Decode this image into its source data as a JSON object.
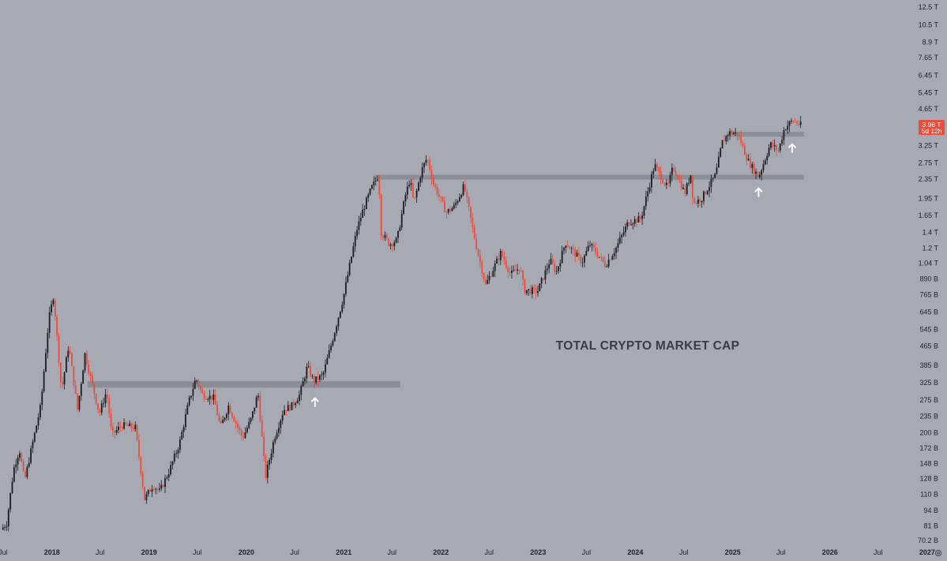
{
  "chart_data": {
    "type": "candlestick",
    "title": "TOTAL CRYPTO MARKET CAP",
    "y_scale": "log",
    "y_range": [
      70200000000.0,
      12500000000000.0
    ],
    "x_range": [
      "2017-06-20",
      "2026-11-15"
    ],
    "y_ticks": [
      {
        "label": "12.5 T",
        "value": 12500000000000.0
      },
      {
        "label": "10.5 T",
        "value": 10500000000000.0
      },
      {
        "label": "8.9 T",
        "value": 8900000000000.0
      },
      {
        "label": "7.65 T",
        "value": 7650000000000.0
      },
      {
        "label": "6.45 T",
        "value": 6450000000000.0
      },
      {
        "label": "5.45 T",
        "value": 5450000000000.0
      },
      {
        "label": "4.65 T",
        "value": 4650000000000.0
      },
      {
        "label": "3.25 T",
        "value": 3250000000000.0
      },
      {
        "label": "2.75 T",
        "value": 2750000000000.0
      },
      {
        "label": "2.35 T",
        "value": 2350000000000.0
      },
      {
        "label": "1.95 T",
        "value": 1950000000000.0
      },
      {
        "label": "1.65 T",
        "value": 1650000000000.0
      },
      {
        "label": "1.4 T",
        "value": 1400000000000.0
      },
      {
        "label": "1.2 T",
        "value": 1200000000000.0
      },
      {
        "label": "1.04 T",
        "value": 1040000000000.0
      },
      {
        "label": "890 B",
        "value": 890000000000.0
      },
      {
        "label": "765 B",
        "value": 765000000000.0
      },
      {
        "label": "645 B",
        "value": 645000000000.0
      },
      {
        "label": "545 B",
        "value": 545000000000.0
      },
      {
        "label": "465 B",
        "value": 465000000000.0
      },
      {
        "label": "385 B",
        "value": 385000000000.0
      },
      {
        "label": "325 B",
        "value": 325000000000.0
      },
      {
        "label": "275 B",
        "value": 275000000000.0
      },
      {
        "label": "235 B",
        "value": 235000000000.0
      },
      {
        "label": "200 B",
        "value": 200000000000.0
      },
      {
        "label": "172 B",
        "value": 172000000000.0
      },
      {
        "label": "148 B",
        "value": 148000000000.0
      },
      {
        "label": "128 B",
        "value": 128000000000.0
      },
      {
        "label": "110 B",
        "value": 110000000000.0
      },
      {
        "label": "94 B",
        "value": 94000000000.0
      },
      {
        "label": "81 B",
        "value": 81000000000.0
      },
      {
        "label": "70.2 B",
        "value": 70200000000.0
      }
    ],
    "x_ticks": [
      {
        "label": "Jul",
        "date": "2017-07-01",
        "year": false
      },
      {
        "label": "2018",
        "date": "2018-01-01",
        "year": true
      },
      {
        "label": "Jul",
        "date": "2018-07-01",
        "year": false
      },
      {
        "label": "2019",
        "date": "2019-01-01",
        "year": true
      },
      {
        "label": "Jul",
        "date": "2019-07-01",
        "year": false
      },
      {
        "label": "2020",
        "date": "2020-01-01",
        "year": true
      },
      {
        "label": "Jul",
        "date": "2020-07-01",
        "year": false
      },
      {
        "label": "2021",
        "date": "2021-01-01",
        "year": true
      },
      {
        "label": "Jul",
        "date": "2021-07-01",
        "year": false
      },
      {
        "label": "2022",
        "date": "2022-01-01",
        "year": true
      },
      {
        "label": "Jul",
        "date": "2022-07-01",
        "year": false
      },
      {
        "label": "2023",
        "date": "2023-01-01",
        "year": true
      },
      {
        "label": "Jul",
        "date": "2023-07-01",
        "year": false
      },
      {
        "label": "2024",
        "date": "2024-01-01",
        "year": true
      },
      {
        "label": "Jul",
        "date": "2024-07-01",
        "year": false
      },
      {
        "label": "2025",
        "date": "2025-01-01",
        "year": true
      },
      {
        "label": "Jul",
        "date": "2025-07-01",
        "year": false
      },
      {
        "label": "2026",
        "date": "2026-01-01",
        "year": true
      },
      {
        "label": "Jul",
        "date": "2026-07-01",
        "year": false
      },
      {
        "label": "2027",
        "date": "2027-01-01",
        "year": true
      }
    ],
    "price_path": [
      [
        "2017-06-24",
        78000000000.0
      ],
      [
        "2017-07-15",
        83000000000.0
      ],
      [
        "2017-08-10",
        140000000000.0
      ],
      [
        "2017-09-01",
        170000000000.0
      ],
      [
        "2017-09-20",
        125000000000.0
      ],
      [
        "2017-10-20",
        180000000000.0
      ],
      [
        "2017-11-20",
        260000000000.0
      ],
      [
        "2017-12-20",
        600000000000.0
      ],
      [
        "2018-01-07",
        760000000000.0
      ],
      [
        "2018-02-06",
        300000000000.0
      ],
      [
        "2018-03-05",
        470000000000.0
      ],
      [
        "2018-04-07",
        250000000000.0
      ],
      [
        "2018-05-05",
        430000000000.0
      ],
      [
        "2018-06-28",
        240000000000.0
      ],
      [
        "2018-07-25",
        300000000000.0
      ],
      [
        "2018-08-14",
        195000000000.0
      ],
      [
        "2018-09-20",
        215000000000.0
      ],
      [
        "2018-11-10",
        210000000000.0
      ],
      [
        "2018-12-15",
        105000000000.0
      ],
      [
        "2019-01-15",
        120000000000.0
      ],
      [
        "2019-02-10",
        113000000000.0
      ],
      [
        "2019-03-20",
        140000000000.0
      ],
      [
        "2019-04-25",
        180000000000.0
      ],
      [
        "2019-05-30",
        270000000000.0
      ],
      [
        "2019-06-26",
        340000000000.0
      ],
      [
        "2019-07-20",
        290000000000.0
      ],
      [
        "2019-09-01",
        280000000000.0
      ],
      [
        "2019-09-26",
        210000000000.0
      ],
      [
        "2019-10-26",
        260000000000.0
      ],
      [
        "2019-12-18",
        190000000000.0
      ],
      [
        "2020-01-20",
        230000000000.0
      ],
      [
        "2020-02-14",
        295000000000.0
      ],
      [
        "2020-03-13",
        130000000000.0
      ],
      [
        "2020-04-15",
        190000000000.0
      ],
      [
        "2020-05-20",
        250000000000.0
      ],
      [
        "2020-06-20",
        260000000000.0
      ],
      [
        "2020-07-20",
        290000000000.0
      ],
      [
        "2020-08-17",
        380000000000.0
      ],
      [
        "2020-09-10",
        330000000000.0
      ],
      [
        "2020-10-15",
        350000000000.0
      ],
      [
        "2020-11-25",
        520000000000.0
      ],
      [
        "2020-12-31",
        750000000000.0
      ],
      [
        "2021-01-22",
        1000000000000.0
      ],
      [
        "2021-02-20",
        1450000000000.0
      ],
      [
        "2021-03-15",
        1750000000000.0
      ],
      [
        "2021-04-15",
        2150000000000.0
      ],
      [
        "2021-05-12",
        2450000000000.0
      ],
      [
        "2021-05-22",
        1400000000000.0
      ],
      [
        "2021-06-22",
        1250000000000.0
      ],
      [
        "2021-07-20",
        1300000000000.0
      ],
      [
        "2021-08-20",
        2000000000000.0
      ],
      [
        "2021-09-07",
        2350000000000.0
      ],
      [
        "2021-09-21",
        1850000000000.0
      ],
      [
        "2021-10-20",
        2550000000000.0
      ],
      [
        "2021-11-10",
        2900000000000.0
      ],
      [
        "2021-12-04",
        2250000000000.0
      ],
      [
        "2022-01-21",
        1700000000000.0
      ],
      [
        "2022-02-20",
        1800000000000.0
      ],
      [
        "2022-03-29",
        2200000000000.0
      ],
      [
        "2022-05-12",
        1250000000000.0
      ],
      [
        "2022-06-18",
        840000000000.0
      ],
      [
        "2022-08-14",
        1150000000000.0
      ],
      [
        "2022-09-20",
        930000000000.0
      ],
      [
        "2022-10-25",
        1000000000000.0
      ],
      [
        "2022-11-10",
        800000000000.0
      ],
      [
        "2022-12-30",
        790000000000.0
      ],
      [
        "2023-02-15",
        1070000000000.0
      ],
      [
        "2023-03-10",
        950000000000.0
      ],
      [
        "2023-04-14",
        1270000000000.0
      ],
      [
        "2023-06-15",
        1050000000000.0
      ],
      [
        "2023-07-14",
        1250000000000.0
      ],
      [
        "2023-09-11",
        1020000000000.0
      ],
      [
        "2023-10-20",
        1200000000000.0
      ],
      [
        "2023-12-06",
        1550000000000.0
      ],
      [
        "2024-01-22",
        1600000000000.0
      ],
      [
        "2024-03-13",
        2700000000000.0
      ],
      [
        "2024-05-01",
        2150000000000.0
      ],
      [
        "2024-05-22",
        2650000000000.0
      ],
      [
        "2024-07-05",
        2050000000000.0
      ],
      [
        "2024-07-29",
        2500000000000.0
      ],
      [
        "2024-08-05",
        1850000000000.0
      ],
      [
        "2024-09-06",
        1950000000000.0
      ],
      [
        "2024-10-29",
        2450000000000.0
      ],
      [
        "2024-11-22",
        3350000000000.0
      ],
      [
        "2024-12-17",
        3700000000000.0
      ],
      [
        "2025-01-20",
        3650000000000.0
      ],
      [
        "2025-02-28",
        2800000000000.0
      ],
      [
        "2025-04-08",
        2400000000000.0
      ],
      [
        "2025-05-22",
        3300000000000.0
      ],
      [
        "2025-06-22",
        3100000000000.0
      ],
      [
        "2025-07-14",
        3850000000000.0
      ],
      [
        "2025-08-14",
        4150000000000.0
      ],
      [
        "2025-09-15",
        3960000000000.0
      ]
    ],
    "resistance_zones": [
      {
        "start": "2018-05-15",
        "end": "2021-08-01",
        "low": 310000000000.0,
        "high": 330000000000.0
      },
      {
        "start": "2021-04-25",
        "end": "2025-09-25",
        "low": 2360000000000.0,
        "high": 2450000000000.0
      },
      {
        "start": "2024-12-10",
        "end": "2025-09-25",
        "low": 3550000000000.0,
        "high": 3720000000000.0
      }
    ],
    "markers": [
      {
        "type": "arrow-up",
        "date": "2020-09-15",
        "value": 280000000000.0
      },
      {
        "type": "arrow-up",
        "date": "2025-04-08",
        "value": 2150000000000.0
      },
      {
        "type": "arrow-up",
        "date": "2025-08-12",
        "value": 3300000000000.0
      }
    ],
    "last_price": {
      "label": "3.96 T",
      "countdown": "5d 12h",
      "value": 3960000000000.0
    },
    "colors": {
      "background": "#a8aab3",
      "up": "#1b1c20",
      "down": "#e84d3d",
      "zone": "#8a8c93",
      "marker": "#ffffff",
      "tag": "#e84d3d"
    },
    "grid": false
  }
}
